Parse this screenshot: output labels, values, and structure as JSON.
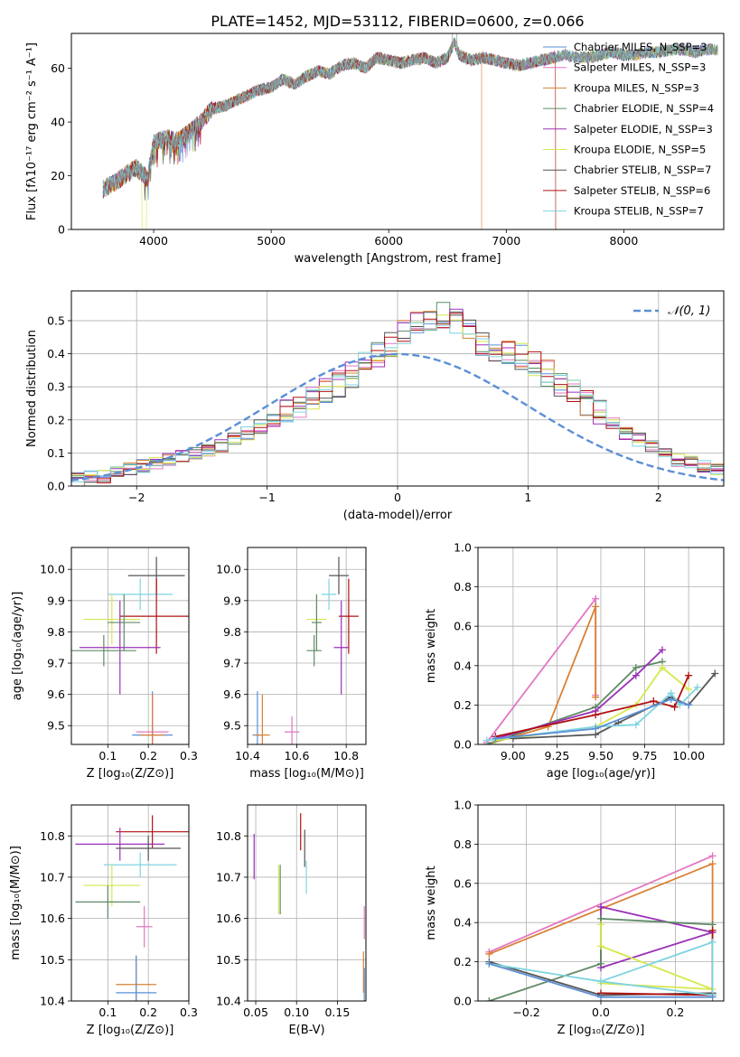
{
  "figure_title": "PLATE=1452, MJD=53112, FIBERID=0600, z=0.066",
  "colors": {
    "chab_miles": "#5b8fd6",
    "salp_miles": "#e377c2",
    "krou_miles": "#d98035",
    "chab_elodie": "#5f8a65",
    "salp_elodie": "#9b30b8",
    "krou_elodie": "#d6e84c",
    "chab_stelib": "#555555",
    "salp_stelib": "#b01010",
    "krou_stelib": "#7fd4e0",
    "normal_curve": "#5b8fd6"
  },
  "chart_data": [
    {
      "id": "spectrum",
      "type": "line",
      "xlabel": "wavelength [Angstrom, rest frame]",
      "ylabel": "Flux [fλ10⁻¹⁷ erg cm⁻² s⁻¹ A⁻¹]",
      "xlim": [
        3300,
        8850
      ],
      "ylim": [
        0,
        73
      ],
      "xticks": [
        4000,
        5000,
        6000,
        7000,
        8000
      ],
      "yticks": [
        0,
        20,
        40,
        60
      ],
      "grid": false,
      "legend_position": "right",
      "legend": [
        "Chabrier MILES, N_SSP=3",
        "Salpeter MILES, N_SSP=3",
        "Kroupa MILES, N_SSP=3",
        "Chabrier ELODIE, N_SSP=4",
        "Salpeter ELODIE, N_SSP=3",
        "Kroupa ELODIE, N_SSP=5",
        "Chabrier STELIB, N_SSP=7",
        "Salpeter STELIB, N_SSP=6",
        "Kroupa STELIB, N_SSP=7"
      ],
      "data_series": {
        "name": "data",
        "x": [
          3570,
          3650,
          3750,
          3850,
          3900,
          3950,
          4000,
          4100,
          4200,
          4300,
          4400,
          4500,
          4600,
          4700,
          4800,
          4900,
          5000,
          5100,
          5200,
          5300,
          5400,
          5500,
          5600,
          5700,
          5800,
          5900,
          6000,
          6100,
          6200,
          6300,
          6400,
          6500,
          6560,
          6600,
          6700,
          6800,
          6900,
          7000,
          7100,
          7200,
          7300,
          7400,
          7500,
          7600,
          7700,
          7800,
          7900,
          8000,
          8100,
          8200,
          8300,
          8400,
          8500,
          8600,
          8700,
          8800
        ],
        "y": [
          15,
          17,
          20,
          23,
          21,
          19,
          32,
          34,
          33,
          36,
          40,
          45,
          46,
          48,
          50,
          52,
          53,
          56,
          54,
          57,
          59,
          58,
          61,
          62,
          60,
          64,
          63,
          62,
          63,
          64,
          62,
          64,
          70,
          65,
          63,
          64,
          63,
          62,
          61,
          62,
          63,
          64,
          65,
          64,
          64,
          65,
          66,
          65,
          65,
          66,
          66,
          67,
          67,
          66,
          67,
          67
        ]
      },
      "model_cutoffs": [
        {
          "series": "krou_elodie",
          "cutoff": 3920
        },
        {
          "series": "salp_stelib",
          "cutoff": 7410
        },
        {
          "series": "krou_miles",
          "cutoff": 6780
        }
      ]
    },
    {
      "id": "residual_histogram",
      "type": "line",
      "xlabel": "(data-model)/error",
      "ylabel": "Normed distribution",
      "xlim": [
        -2.5,
        2.5
      ],
      "ylim": [
        0,
        0.59
      ],
      "xticks": [
        -2,
        -1,
        0,
        1,
        2
      ],
      "yticks": [
        0.0,
        0.1,
        0.2,
        0.3,
        0.4,
        0.5
      ],
      "grid": true,
      "legend_position": "top-right",
      "legend": [
        "𝒩(0, 1)"
      ],
      "bin_edges_start": -2.5,
      "bin_width": 0.1,
      "base_heights": [
        0.02,
        0.03,
        0.03,
        0.04,
        0.05,
        0.06,
        0.07,
        0.08,
        0.09,
        0.1,
        0.11,
        0.12,
        0.14,
        0.16,
        0.18,
        0.2,
        0.22,
        0.24,
        0.26,
        0.29,
        0.31,
        0.34,
        0.37,
        0.4,
        0.43,
        0.46,
        0.49,
        0.51,
        0.52,
        0.5,
        0.46,
        0.43,
        0.41,
        0.4,
        0.39,
        0.37,
        0.34,
        0.31,
        0.28,
        0.25,
        0.22,
        0.19,
        0.16,
        0.14,
        0.12,
        0.1,
        0.08,
        0.07,
        0.06,
        0.05
      ]
    },
    {
      "id": "age_vs_Z",
      "type": "scatter",
      "xlabel": "Z [log₁₀(Z/Z⊙)]",
      "ylabel": "age  [log₁₀(age/yr)]",
      "xlim": [
        0.01,
        0.3
      ],
      "ylim": [
        9.44,
        10.07
      ],
      "xticks": [
        0.1,
        0.2,
        0.3
      ],
      "yticks": [
        9.5,
        9.6,
        9.7,
        9.8,
        9.9,
        10.0
      ],
      "grid": true,
      "points": [
        {
          "series": "chab_stelib",
          "x": 0.22,
          "y": 9.98,
          "xerr": 0.07,
          "yerr": 0.06
        },
        {
          "series": "krou_stelib",
          "x": 0.18,
          "y": 9.92,
          "xerr": 0.08,
          "yerr": 0.05
        },
        {
          "series": "salp_stelib",
          "x": 0.22,
          "y": 9.85,
          "xerr": 0.09,
          "yerr": 0.12
        },
        {
          "series": "krou_elodie",
          "x": 0.11,
          "y": 9.84,
          "xerr": 0.07,
          "yerr": 0.08
        },
        {
          "series": "chab_elodie",
          "x": 0.14,
          "y": 9.83,
          "xerr": 0.04,
          "yerr": 0.09
        },
        {
          "series": "salp_elodie",
          "x": 0.13,
          "y": 9.75,
          "xerr": 0.1,
          "yerr": 0.15
        },
        {
          "series": "chab_elodie",
          "x": 0.09,
          "y": 9.74,
          "xerr": 0.08,
          "yerr": 0.05
        },
        {
          "series": "chab_miles",
          "x": 0.21,
          "y": 9.47,
          "xerr": 0.05,
          "yerr": 0.14
        },
        {
          "series": "salp_miles",
          "x": 0.21,
          "y": 9.48,
          "xerr": 0.04,
          "yerr": 0.12
        },
        {
          "series": "krou_miles",
          "x": 0.21,
          "y": 9.47,
          "xerr": 0.03,
          "yerr": 0.13
        }
      ]
    },
    {
      "id": "age_vs_mass",
      "type": "scatter",
      "xlabel": "mass [log₁₀(M/M⊙)]",
      "ylabel": "",
      "xlim": [
        10.4,
        10.88
      ],
      "ylim": [
        9.44,
        10.07
      ],
      "xticks": [
        10.4,
        10.6,
        10.8
      ],
      "yticks": [
        9.5,
        9.6,
        9.7,
        9.8,
        9.9,
        10.0
      ],
      "grid": true,
      "points": [
        {
          "series": "chab_stelib",
          "x": 10.77,
          "y": 9.98,
          "xerr": 0.04,
          "yerr": 0.06
        },
        {
          "series": "krou_stelib",
          "x": 10.73,
          "y": 9.92,
          "xerr": 0.03,
          "yerr": 0.05
        },
        {
          "series": "salp_stelib",
          "x": 10.81,
          "y": 9.85,
          "xerr": 0.04,
          "yerr": 0.12
        },
        {
          "series": "krou_elodie",
          "x": 10.68,
          "y": 9.84,
          "xerr": 0.04,
          "yerr": 0.08
        },
        {
          "series": "chab_elodie",
          "x": 10.68,
          "y": 9.83,
          "xerr": 0.02,
          "yerr": 0.09
        },
        {
          "series": "salp_elodie",
          "x": 10.78,
          "y": 9.75,
          "xerr": 0.03,
          "yerr": 0.15
        },
        {
          "series": "chab_elodie",
          "x": 10.67,
          "y": 9.74,
          "xerr": 0.03,
          "yerr": 0.05
        },
        {
          "series": "chab_miles",
          "x": 10.44,
          "y": 9.47,
          "xerr": 0.02,
          "yerr": 0.14
        },
        {
          "series": "salp_miles",
          "x": 10.58,
          "y": 9.48,
          "xerr": 0.03,
          "yerr": 0.05
        },
        {
          "series": "krou_miles",
          "x": 10.46,
          "y": 9.47,
          "xerr": 0.03,
          "yerr": 0.13
        }
      ]
    },
    {
      "id": "weight_vs_age",
      "type": "line",
      "xlabel": "age  [log₁₀(age/yr)]",
      "ylabel": "mass weight",
      "xlim": [
        8.8,
        10.2
      ],
      "ylim": [
        0,
        1.0
      ],
      "xticks": [
        9.0,
        9.25,
        9.5,
        9.75,
        10.0
      ],
      "yticks": [
        0.0,
        0.2,
        0.4,
        0.6,
        0.8,
        1.0
      ],
      "grid": true,
      "series": [
        {
          "series": "salp_miles",
          "x": [
            8.85,
            9.47,
            9.47
          ],
          "y": [
            0.01,
            0.74,
            0.25
          ]
        },
        {
          "series": "krou_miles",
          "x": [
            8.85,
            9.2,
            9.47,
            9.47
          ],
          "y": [
            0.0,
            0.09,
            0.7,
            0.24
          ]
        },
        {
          "series": "chab_elodie",
          "x": [
            8.85,
            9.47,
            9.7,
            9.85
          ],
          "y": [
            0.0,
            0.19,
            0.39,
            0.42
          ]
        },
        {
          "series": "salp_elodie",
          "x": [
            8.9,
            9.47,
            9.7,
            9.85
          ],
          "y": [
            0.03,
            0.17,
            0.35,
            0.48
          ]
        },
        {
          "series": "krou_elodie",
          "x": [
            8.9,
            9.47,
            9.7,
            9.85,
            10.0
          ],
          "y": [
            0.02,
            0.09,
            0.2,
            0.39,
            0.28
          ]
        },
        {
          "series": "chab_stelib",
          "x": [
            9.0,
            9.47,
            9.6,
            9.9,
            10.0,
            10.15
          ],
          "y": [
            0.03,
            0.05,
            0.11,
            0.24,
            0.2,
            0.36
          ]
        },
        {
          "series": "salp_stelib",
          "x": [
            8.9,
            9.47,
            9.8,
            9.92,
            10.0
          ],
          "y": [
            0.04,
            0.15,
            0.22,
            0.19,
            0.35
          ]
        },
        {
          "series": "krou_stelib",
          "x": [
            8.85,
            9.47,
            9.7,
            9.9,
            9.95,
            10.05
          ],
          "y": [
            0.02,
            0.09,
            0.1,
            0.26,
            0.2,
            0.29
          ]
        },
        {
          "series": "chab_miles",
          "x": [
            8.9,
            9.47,
            9.9,
            10.0
          ],
          "y": [
            0.03,
            0.08,
            0.23,
            0.2
          ]
        }
      ]
    },
    {
      "id": "mass_vs_Z",
      "type": "scatter",
      "xlabel": "Z [log₁₀(Z/Z⊙)]",
      "ylabel": "mass [log₁₀(M/M⊙)]",
      "xlim": [
        0.01,
        0.3
      ],
      "ylim": [
        10.4,
        10.875
      ],
      "xticks": [
        0.1,
        0.2,
        0.3
      ],
      "yticks": [
        10.4,
        10.5,
        10.6,
        10.7,
        10.8
      ],
      "grid": true,
      "points": [
        {
          "series": "salp_stelib",
          "x": 0.21,
          "y": 10.81,
          "xerr": 0.09,
          "yerr": 0.04
        },
        {
          "series": "salp_elodie",
          "x": 0.13,
          "y": 10.78,
          "xerr": 0.11,
          "yerr": 0.04
        },
        {
          "series": "chab_stelib",
          "x": 0.2,
          "y": 10.77,
          "xerr": 0.08,
          "yerr": 0.03
        },
        {
          "series": "krou_stelib",
          "x": 0.18,
          "y": 10.73,
          "xerr": 0.09,
          "yerr": 0.03
        },
        {
          "series": "krou_elodie",
          "x": 0.11,
          "y": 10.68,
          "xerr": 0.07,
          "yerr": 0.05
        },
        {
          "series": "chab_elodie",
          "x": 0.1,
          "y": 10.64,
          "xerr": 0.08,
          "yerr": 0.04
        },
        {
          "series": "salp_miles",
          "x": 0.19,
          "y": 10.58,
          "xerr": 0.02,
          "yerr": 0.05
        },
        {
          "series": "krou_miles",
          "x": 0.17,
          "y": 10.44,
          "xerr": 0.05,
          "yerr": 0.07
        },
        {
          "series": "chab_miles",
          "x": 0.17,
          "y": 10.42,
          "xerr": 0.05,
          "yerr": 0.09
        }
      ]
    },
    {
      "id": "mass_vs_ebv",
      "type": "scatter",
      "xlabel": "E(B-V)",
      "ylabel": "",
      "xlim": [
        0.04,
        0.185
      ],
      "ylim": [
        10.4,
        10.875
      ],
      "xticks": [
        0.05,
        0.1,
        0.15
      ],
      "yticks": [
        10.4,
        10.5,
        10.6,
        10.7,
        10.8
      ],
      "grid": true,
      "points": [
        {
          "series": "salp_stelib",
          "x": 0.105,
          "y": 10.81,
          "xerr": 0.0,
          "yerr": 0.045
        },
        {
          "series": "salp_elodie",
          "x": 0.048,
          "y": 10.75,
          "xerr": 0.0,
          "yerr": 0.055
        },
        {
          "series": "chab_stelib",
          "x": 0.11,
          "y": 10.77,
          "xerr": 0.0,
          "yerr": 0.045
        },
        {
          "series": "krou_stelib",
          "x": 0.112,
          "y": 10.7,
          "xerr": 0.0,
          "yerr": 0.04
        },
        {
          "series": "krou_elodie",
          "x": 0.078,
          "y": 10.67,
          "xerr": 0.0,
          "yerr": 0.06
        },
        {
          "series": "chab_elodie",
          "x": 0.08,
          "y": 10.67,
          "xerr": 0.0,
          "yerr": 0.06
        },
        {
          "series": "salp_miles",
          "x": 0.183,
          "y": 10.59,
          "xerr": 0.0,
          "yerr": 0.04
        },
        {
          "series": "krou_miles",
          "x": 0.182,
          "y": 10.47,
          "xerr": 0.0,
          "yerr": 0.05
        },
        {
          "series": "chab_miles",
          "x": 0.183,
          "y": 10.44,
          "xerr": 0.0,
          "yerr": 0.04
        }
      ]
    },
    {
      "id": "weight_vs_Z",
      "type": "line",
      "xlabel": "Z [log₁₀(Z/Z⊙)]",
      "ylabel": "mass weight",
      "xlim": [
        -0.33,
        0.33
      ],
      "ylim": [
        0,
        1.0
      ],
      "xticks": [
        -0.2,
        0.0,
        0.2
      ],
      "yticks": [
        0.0,
        0.2,
        0.4,
        0.6,
        0.8,
        1.0
      ],
      "grid": true,
      "series": [
        {
          "series": "salp_miles",
          "x": [
            -0.3,
            0.3
          ],
          "y": [
            0.25,
            0.74
          ]
        },
        {
          "series": "krou_miles",
          "x": [
            -0.3,
            0.3,
            0.3
          ],
          "y": [
            0.24,
            0.7,
            0.03
          ]
        },
        {
          "series": "salp_elodie",
          "x": [
            0.0,
            0.0,
            0.3,
            0.0
          ],
          "y": [
            0.48,
            0.17,
            0.35,
            0.48
          ]
        },
        {
          "series": "chab_elodie",
          "x": [
            -0.3,
            0.0,
            0.0,
            0.3
          ],
          "y": [
            0.0,
            0.19,
            0.42,
            0.39
          ]
        },
        {
          "series": "krou_elodie",
          "x": [
            0.0,
            0.0,
            0.3,
            0.0
          ],
          "y": [
            0.39,
            0.28,
            0.06,
            0.09
          ]
        },
        {
          "series": "chab_stelib",
          "x": [
            -0.3,
            0.0,
            0.3
          ],
          "y": [
            0.2,
            0.03,
            0.04
          ]
        },
        {
          "series": "salp_stelib",
          "x": [
            0.0,
            0.3,
            0.3
          ],
          "y": [
            0.04,
            0.03,
            0.36
          ]
        },
        {
          "series": "krou_stelib",
          "x": [
            -0.3,
            0.0,
            0.3,
            0.3,
            0.0
          ],
          "y": [
            0.19,
            0.1,
            0.03,
            0.3,
            0.1
          ]
        },
        {
          "series": "chab_miles",
          "x": [
            -0.3,
            0.0,
            0.3
          ],
          "y": [
            0.19,
            0.02,
            0.02
          ]
        }
      ]
    }
  ]
}
